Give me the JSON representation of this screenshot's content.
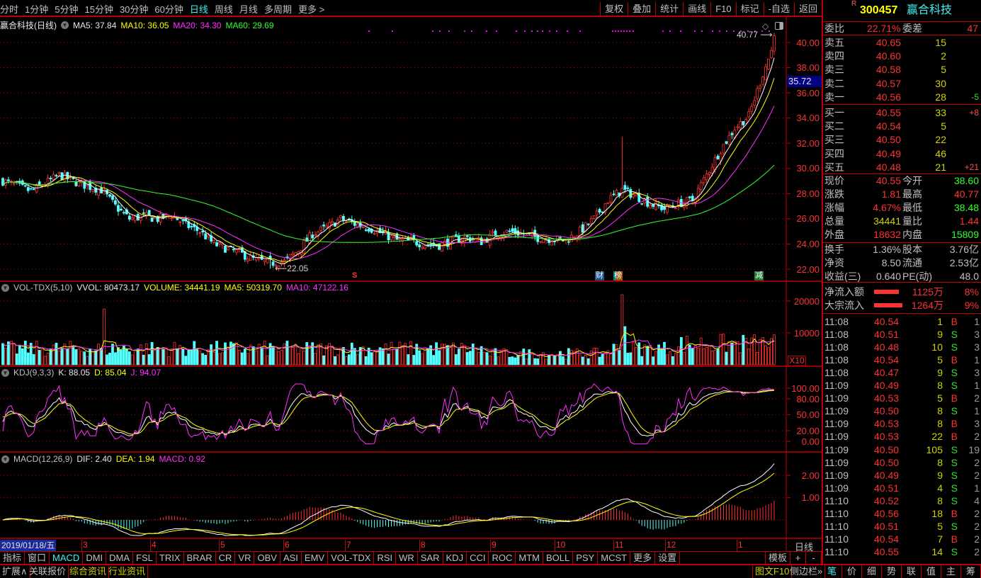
{
  "toolbar": {
    "periods": [
      "分时",
      "1分钟",
      "5分钟",
      "15分钟",
      "30分钟",
      "60分钟",
      "日线",
      "周线",
      "月线",
      "多周期",
      "更多 >"
    ],
    "active_period": "日线",
    "tools": [
      "复权",
      "叠加",
      "统计",
      "画线",
      "F10",
      "标记",
      "-自选",
      "返回"
    ]
  },
  "price_header": {
    "title": "赢合科技(日线)",
    "ma5": "MA5: 37.84",
    "ma10": "MA10: 36.05",
    "ma20": "MA20: 34.30",
    "ma60": "MA60: 29.69"
  },
  "vol_header": {
    "title": "VOL-TDX(5,10)",
    "vvol": "VVOL: 80473.17",
    "volume": "VOLUME: 34441.19",
    "ma5": "MA5: 50319.70",
    "ma10": "MA10: 47122.16"
  },
  "kdj_header": {
    "title": "KDJ(9,3,3)",
    "k": "K: 88.05",
    "d": "D: 85.04",
    "j": "J: 94.07"
  },
  "macd_header": {
    "title": "MACD(12,26,9)",
    "dif": "DIF: 2.40",
    "dea": "DEA: 1.94",
    "macd": "MACD: 0.92"
  },
  "price_axis": [
    "40.00",
    "38.00",
    "36.00",
    "34.00",
    "32.00",
    "30.00",
    "28.00",
    "26.00",
    "24.00",
    "22.00"
  ],
  "price_axis_values": [
    40,
    38,
    36,
    34,
    32,
    30,
    28,
    26,
    24,
    22
  ],
  "cursor_price": "35.72",
  "high_label": "40.77",
  "low_label": "22.05",
  "vol_axis": [
    "20000",
    "10000"
  ],
  "vol_axis_values": [
    20000,
    10000
  ],
  "vol_unit": "X10",
  "kdj_axis": [
    "100.00",
    "80.00",
    "50.00",
    "20.00",
    "0.00"
  ],
  "kdj_axis_values": [
    100,
    80,
    50,
    20,
    0
  ],
  "macd_axis": [
    "2.00",
    "1.00"
  ],
  "macd_axis_values": [
    2,
    1
  ],
  "markers": {
    "s": "S",
    "cai": "财",
    "bang": "榜",
    "jian": "减"
  },
  "date_axis": {
    "current": "2019/01/18/五",
    "months": [
      "3",
      "4",
      "5",
      "6",
      "7",
      "8",
      "9",
      "10",
      "11",
      "12",
      "1"
    ],
    "period_label": "日线"
  },
  "weekly_closes": [
    29.0,
    28.6,
    28.2,
    28.8,
    29.5,
    29.0,
    28.6,
    28.3,
    27.0,
    26.0,
    26.2,
    26.0,
    26.3,
    25.5,
    25.0,
    24.0,
    23.6,
    23.2,
    22.7,
    22.5,
    22.6,
    23.5,
    24.8,
    25.3,
    26.0,
    25.6,
    25.3,
    24.8,
    24.3,
    24.2,
    24.0,
    23.9,
    24.3,
    24.5,
    24.2,
    24.8,
    25.0,
    24.8,
    24.5,
    24.4,
    24.3,
    25.0,
    26.0,
    27.5,
    28.3,
    27.8,
    27.2,
    26.8,
    27.2,
    27.5,
    29.5,
    31.5,
    33.2,
    34.2,
    37.5,
    40.55
  ],
  "colors": {
    "up": "#ff3232",
    "down": "#54ffff",
    "ma5": "#ffffff",
    "ma10": "#ffff00",
    "ma20": "#ff30ff",
    "ma60": "#30ff30",
    "grid": "#c00000",
    "accent": "#c00000"
  },
  "tabs": [
    "指标",
    "窗口",
    "MACD",
    "DMI",
    "DMA",
    "FSL",
    "TRIX",
    "BRAR",
    "CR",
    "VR",
    "OBV",
    "ASI",
    "EMV",
    "VOL-TDX",
    "RSI",
    "WR",
    "SAR",
    "KDJ",
    "CCI",
    "ROC",
    "MTM",
    "BOLL",
    "PSY",
    "MCST",
    "更多",
    "设置"
  ],
  "active_tab": "MACD",
  "tabs_right": [
    "模板",
    "+",
    "-"
  ],
  "bottom_left": [
    "扩展∧",
    "关联报价",
    "综合资讯",
    "行业资讯"
  ],
  "bottom_right": {
    "f10": "图文F10",
    "sidebar": "侧边栏»",
    "views": [
      "笔",
      "价",
      "细",
      "势",
      "联",
      "值",
      "主",
      "筹"
    ]
  },
  "quote": {
    "badge": "R",
    "code": "300457",
    "name": "赢合科技",
    "weibi_label": "委比",
    "weibi": "22.71%",
    "weicha_label": "委差",
    "weicha": "47",
    "sell": [
      {
        "l": "卖五",
        "p": "40.65",
        "v": "15",
        "c": ""
      },
      {
        "l": "卖四",
        "p": "40.60",
        "v": "2",
        "c": ""
      },
      {
        "l": "卖三",
        "p": "40.58",
        "v": "5",
        "c": ""
      },
      {
        "l": "卖二",
        "p": "40.57",
        "v": "30",
        "c": ""
      },
      {
        "l": "卖一",
        "p": "40.56",
        "v": "28",
        "c": "-5"
      }
    ],
    "buy": [
      {
        "l": "买一",
        "p": "40.55",
        "v": "33",
        "c": "+8"
      },
      {
        "l": "买二",
        "p": "40.54",
        "v": "5",
        "c": ""
      },
      {
        "l": "买三",
        "p": "40.50",
        "v": "22",
        "c": ""
      },
      {
        "l": "买四",
        "p": "40.49",
        "v": "46",
        "c": ""
      },
      {
        "l": "买五",
        "p": "40.48",
        "v": "21",
        "c": "+21"
      }
    ],
    "stats": [
      {
        "l1": "现价",
        "v1": "40.55",
        "c1": "red",
        "l2": "今开",
        "v2": "38.60",
        "c2": "grn"
      },
      {
        "l1": "涨跌",
        "v1": "1.81",
        "c1": "red",
        "l2": "最高",
        "v2": "40.77",
        "c2": "red"
      },
      {
        "l1": "涨幅",
        "v1": "4.67%",
        "c1": "red",
        "l2": "最低",
        "v2": "38.48",
        "c2": "grn"
      },
      {
        "l1": "总量",
        "v1": "34441",
        "c1": "dyel",
        "l2": "量比",
        "v2": "1.44",
        "c2": "red"
      },
      {
        "l1": "外盘",
        "v1": "18632",
        "c1": "red",
        "l2": "内盘",
        "v2": "15809",
        "c2": "grn"
      }
    ],
    "fin": [
      {
        "l1": "换手",
        "v1": "1.36%",
        "l2": "股本",
        "v2": "3.76亿"
      },
      {
        "l1": "净资",
        "v1": "8.50",
        "l2": "流通",
        "v2": "2.53亿"
      },
      {
        "l1": "收益(三)",
        "v1": "0.640",
        "l2": "PE(动)",
        "v2": "48.0"
      }
    ],
    "flow": [
      {
        "l": "净流入额",
        "v": "1125万",
        "p": "8%",
        "bar": 0.8
      },
      {
        "l": "大宗流入",
        "v": "1264万",
        "p": "9%",
        "bar": 0.9
      }
    ]
  },
  "trades": [
    [
      "11:08",
      "40.54",
      "1",
      "B",
      "1"
    ],
    [
      "11:08",
      "40.51",
      "9",
      "S",
      "3"
    ],
    [
      "11:08",
      "40.48",
      "10",
      "S",
      "3"
    ],
    [
      "11:08",
      "40.54",
      "5",
      "B",
      "1"
    ],
    [
      "11:08",
      "40.47",
      "9",
      "S",
      "3"
    ],
    [
      "11:09",
      "40.49",
      "8",
      "S",
      "1"
    ],
    [
      "11:09",
      "40.53",
      "5",
      "B",
      "2"
    ],
    [
      "11:09",
      "40.50",
      "8",
      "S",
      "1"
    ],
    [
      "11:09",
      "40.53",
      "8",
      "B",
      "3"
    ],
    [
      "11:09",
      "40.53",
      "22",
      "B",
      "2"
    ],
    [
      "11:09",
      "40.50",
      "105",
      "S",
      "19"
    ],
    [
      "11:09",
      "40.50",
      "8",
      "S",
      "2"
    ],
    [
      "11:09",
      "40.49",
      "9",
      "S",
      "2"
    ],
    [
      "11:09",
      "40.51",
      "4",
      "S",
      "1"
    ],
    [
      "11:10",
      "40.52",
      "8",
      "S",
      "4"
    ],
    [
      "11:10",
      "40.56",
      "18",
      "B",
      "2"
    ],
    [
      "11:10",
      "40.51",
      "5",
      "S",
      "2"
    ],
    [
      "11:10",
      "40.54",
      "7",
      "B",
      "2"
    ],
    [
      "11:10",
      "40.55",
      "14",
      "S",
      "2"
    ]
  ]
}
